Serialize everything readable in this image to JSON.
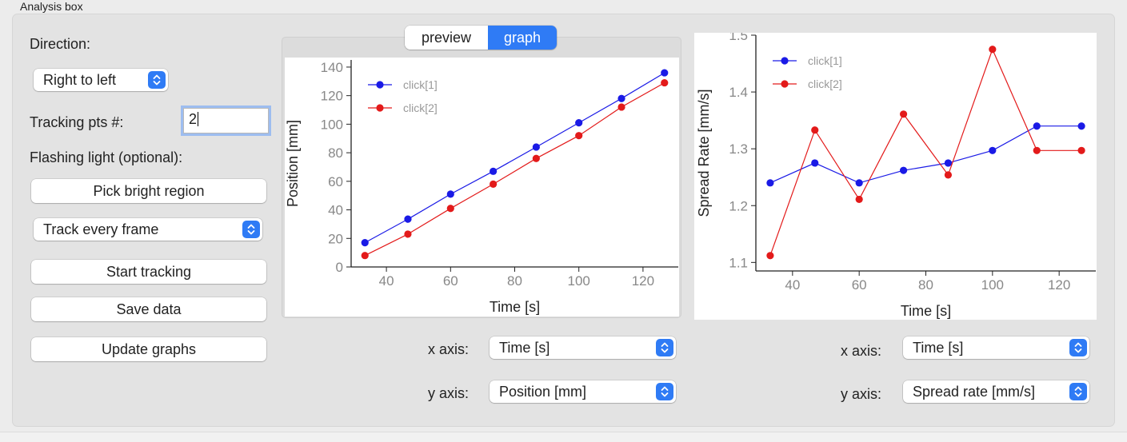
{
  "panel": {
    "title": "Analysis box",
    "direction_label": "Direction:",
    "direction_value": "Right to left",
    "tracking_label": "Tracking pts #:",
    "tracking_value": "2",
    "flashing_label": "Flashing light (optional):",
    "pick_region_button": "Pick bright region",
    "track_mode_value": "Track every frame",
    "start_tracking_button": "Start tracking",
    "save_data_button": "Save data",
    "update_graphs_button": "Update graphs"
  },
  "tabs": [
    {
      "label": "preview",
      "selected": false
    },
    {
      "label": "graph",
      "selected": true
    }
  ],
  "axis_controls": {
    "left": {
      "x_label": "x axis:",
      "x_value": "Time [s]",
      "y_label": "y axis:",
      "y_value": "Position [mm]"
    },
    "right": {
      "x_label": "x axis:",
      "x_value": "Time [s]",
      "y_label": "y axis:",
      "y_value": "Spread rate [mm/s]"
    }
  },
  "colors": {
    "accent": "#2f7bf5",
    "series1": "#1a1ae6",
    "series2": "#e31a1a"
  },
  "chart_data": [
    {
      "type": "line",
      "xlabel": "Time [s]",
      "ylabel": "Position [mm]",
      "xlim": [
        29,
        131
      ],
      "ylim": [
        0,
        145
      ],
      "xticks": [
        40,
        60,
        80,
        100,
        120
      ],
      "yticks": [
        0,
        20,
        40,
        60,
        80,
        100,
        120,
        140
      ],
      "legend_position": "top-left",
      "x": [
        33.3,
        46.7,
        60,
        73.3,
        86.7,
        100,
        113.3,
        126.7
      ],
      "series": [
        {
          "name": "click[1]",
          "color": "#1a1ae6",
          "values": [
            17,
            33.5,
            51,
            67,
            84,
            101,
            118,
            136
          ]
        },
        {
          "name": "click[2]",
          "color": "#e31a1a",
          "values": [
            8,
            23,
            41,
            58,
            76,
            92,
            112,
            129
          ]
        }
      ]
    },
    {
      "type": "line",
      "xlabel": "Time [s]",
      "ylabel": "Spread Rate [mm/s]",
      "xlim": [
        29,
        131
      ],
      "ylim": [
        1.085,
        1.5
      ],
      "xticks": [
        40,
        60,
        80,
        100,
        120
      ],
      "yticks": [
        1.1,
        1.2,
        1.3,
        1.4,
        1.5
      ],
      "ytick_labels": [
        "1.1",
        "1.2",
        "1.3",
        "1.4",
        "1.5"
      ],
      "legend_position": "top-left",
      "x": [
        33.3,
        46.7,
        60,
        73.3,
        86.7,
        100,
        113.3,
        126.7
      ],
      "series": [
        {
          "name": "click[1]",
          "color": "#1a1ae6",
          "values": [
            1.24,
            1.275,
            1.24,
            1.262,
            1.275,
            1.297,
            1.34,
            1.34
          ]
        },
        {
          "name": "click[2]",
          "color": "#e31a1a",
          "values": [
            1.112,
            1.333,
            1.211,
            1.361,
            1.254,
            1.475,
            1.297,
            1.297
          ]
        }
      ]
    }
  ]
}
